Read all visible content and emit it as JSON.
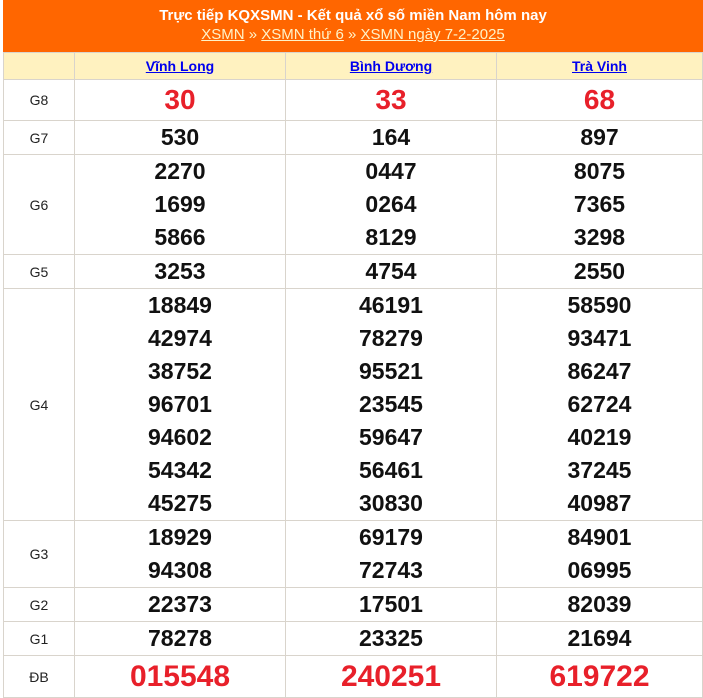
{
  "header": {
    "title": "Trực tiếp KQXSMN - Kết quả xổ số miền Nam hôm nay",
    "breadcrumb": [
      "XSMN",
      "XSMN thứ 6",
      "XSMN ngày 7-2-2025"
    ],
    "separator": "»"
  },
  "colors": {
    "header_bg": "#ff6600",
    "column_header_bg": "#fff2c0",
    "highlight": "#e8202a"
  },
  "provinces": [
    "Vĩnh Long",
    "Bình Dương",
    "Trà Vinh"
  ],
  "prizes": [
    {
      "label": "G8",
      "values": [
        [
          "30"
        ],
        [
          "33"
        ],
        [
          "68"
        ]
      ]
    },
    {
      "label": "G7",
      "values": [
        [
          "530"
        ],
        [
          "164"
        ],
        [
          "897"
        ]
      ]
    },
    {
      "label": "G6",
      "values": [
        [
          "2270",
          "1699",
          "5866"
        ],
        [
          "0447",
          "0264",
          "8129"
        ],
        [
          "8075",
          "7365",
          "3298"
        ]
      ]
    },
    {
      "label": "G5",
      "values": [
        [
          "3253"
        ],
        [
          "4754"
        ],
        [
          "2550"
        ]
      ]
    },
    {
      "label": "G4",
      "values": [
        [
          "18849",
          "42974",
          "38752",
          "96701",
          "94602",
          "54342",
          "45275"
        ],
        [
          "46191",
          "78279",
          "95521",
          "23545",
          "59647",
          "56461",
          "30830"
        ],
        [
          "58590",
          "93471",
          "86247",
          "62724",
          "40219",
          "37245",
          "40987"
        ]
      ]
    },
    {
      "label": "G3",
      "values": [
        [
          "18929",
          "94308"
        ],
        [
          "69179",
          "72743"
        ],
        [
          "84901",
          "06995"
        ]
      ]
    },
    {
      "label": "G2",
      "values": [
        [
          "22373"
        ],
        [
          "17501"
        ],
        [
          "82039"
        ]
      ]
    },
    {
      "label": "G1",
      "values": [
        [
          "78278"
        ],
        [
          "23325"
        ],
        [
          "21694"
        ]
      ]
    },
    {
      "label": "ĐB",
      "values": [
        [
          "015548"
        ],
        [
          "240251"
        ],
        [
          "619722"
        ]
      ]
    }
  ]
}
